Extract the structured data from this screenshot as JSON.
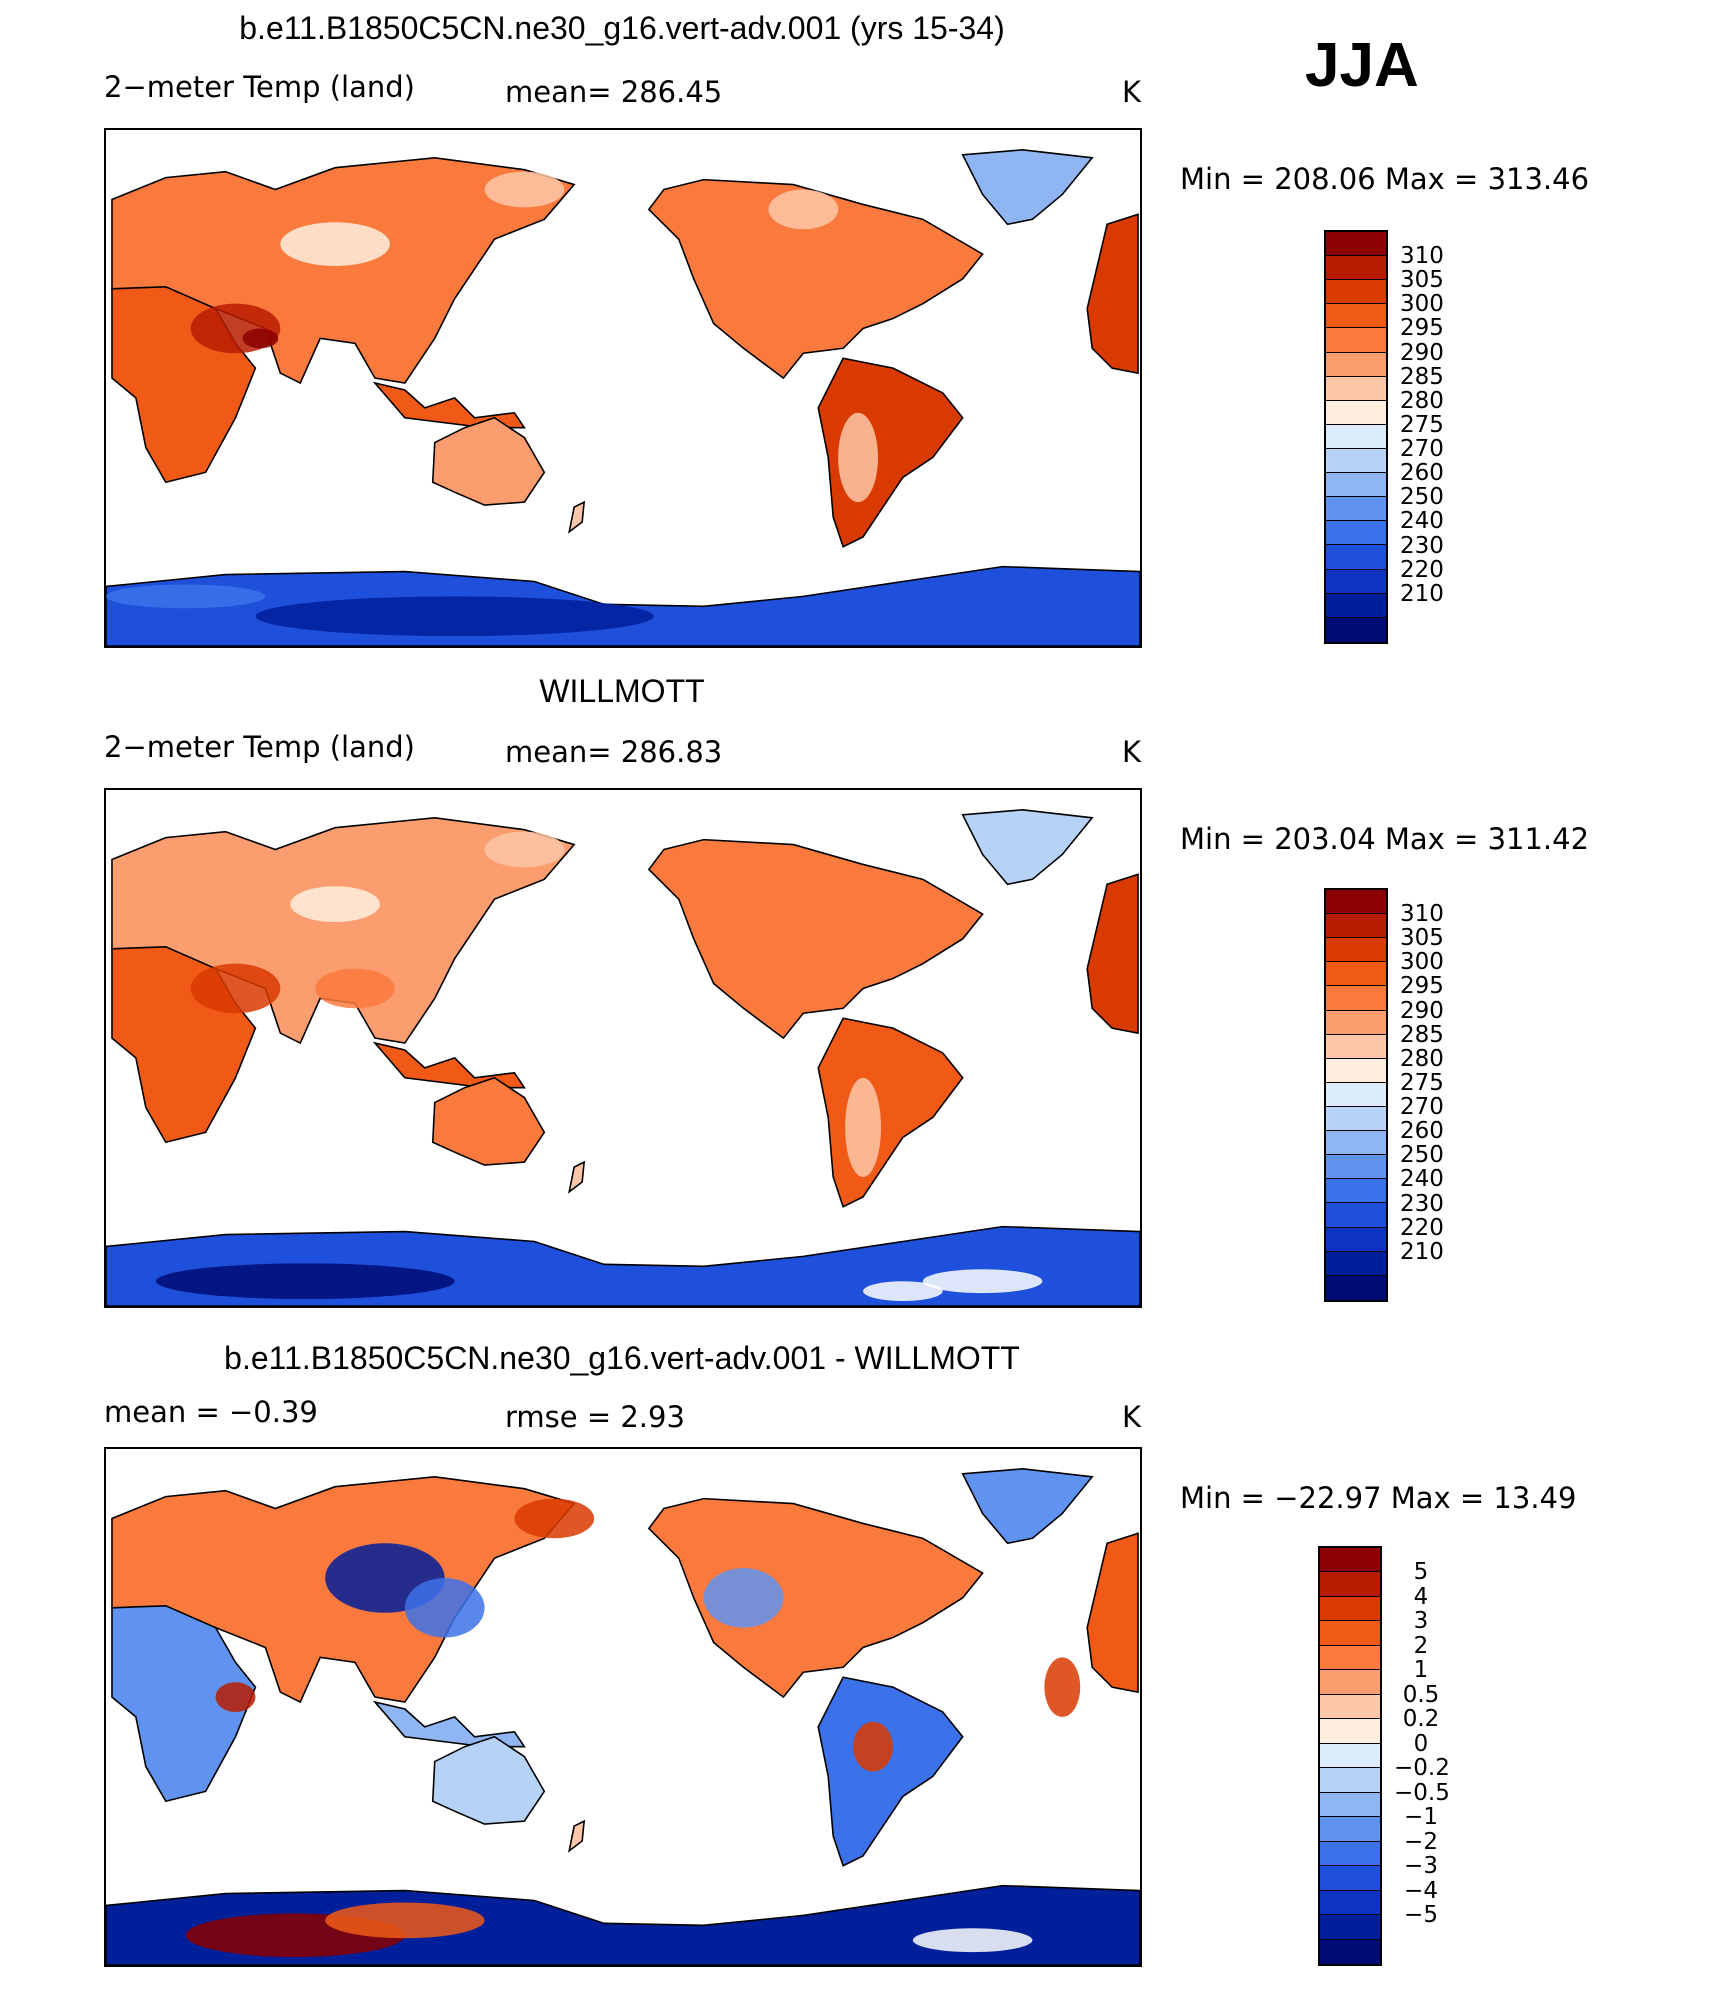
{
  "season": "JJA",
  "panels": [
    {
      "title": "b.e11.B1850C5CN.ne30_g16.vert-adv.001 (yrs 15-34)",
      "left_text": "2−meter Temp (land)",
      "center_text": "mean= 286.45",
      "units": "K",
      "minmax": "Min = 208.06 Max = 313.46",
      "mode": "model",
      "colorbar": {
        "colors": [
          "#8b0000",
          "#b81c00",
          "#d93a00",
          "#f05a16",
          "#fa7a3e",
          "#fb9d6e",
          "#fdc7a8",
          "#fdeede",
          "#ddecfb",
          "#b6d2f7",
          "#8fb5f3",
          "#5f93ef",
          "#3c72e9",
          "#1e50dc",
          "#0d33c2",
          "#001f9a",
          "#000c74"
        ],
        "labels": [
          "310",
          "305",
          "300",
          "295",
          "290",
          "285",
          "280",
          "275",
          "270",
          "260",
          "250",
          "240",
          "230",
          "220",
          "210"
        ]
      }
    },
    {
      "title": "WILLMOTT",
      "left_text": "2−meter Temp (land)",
      "center_text": "mean= 286.83",
      "units": "K",
      "minmax": "Min = 203.04 Max = 311.42",
      "mode": "obs",
      "colorbar": {
        "colors": [
          "#8b0000",
          "#b81c00",
          "#d93a00",
          "#f05a16",
          "#fa7a3e",
          "#fb9d6e",
          "#fdc7a8",
          "#fdeede",
          "#ddecfb",
          "#b6d2f7",
          "#8fb5f3",
          "#5f93ef",
          "#3c72e9",
          "#1e50dc",
          "#0d33c2",
          "#001f9a",
          "#000c74"
        ],
        "labels": [
          "310",
          "305",
          "300",
          "295",
          "290",
          "285",
          "280",
          "275",
          "270",
          "260",
          "250",
          "240",
          "230",
          "220",
          "210"
        ]
      }
    },
    {
      "title": "b.e11.B1850C5CN.ne30_g16.vert-adv.001 - WILLMOTT",
      "left_text": "mean = −0.39",
      "center_text": "rmse = 2.93",
      "units": "K",
      "minmax": "Min = −22.97 Max = 13.49",
      "mode": "diff",
      "colorbar": {
        "colors": [
          "#8b0000",
          "#b81c00",
          "#d93a00",
          "#f05a16",
          "#fa7a3e",
          "#fb9d6e",
          "#fdc7a8",
          "#fdeede",
          "#ddecfb",
          "#b6d2f7",
          "#8fb5f3",
          "#5f93ef",
          "#3c72e9",
          "#1e50dc",
          "#0d33c2",
          "#001f9a",
          "#000c74"
        ],
        "labels": [
          "5",
          "4",
          "3",
          "2",
          "1",
          "0.5",
          "0.2",
          "0",
          "−0.2",
          "−0.5",
          "−1",
          "−2",
          "−3",
          "−4",
          "−5"
        ]
      }
    }
  ]
}
